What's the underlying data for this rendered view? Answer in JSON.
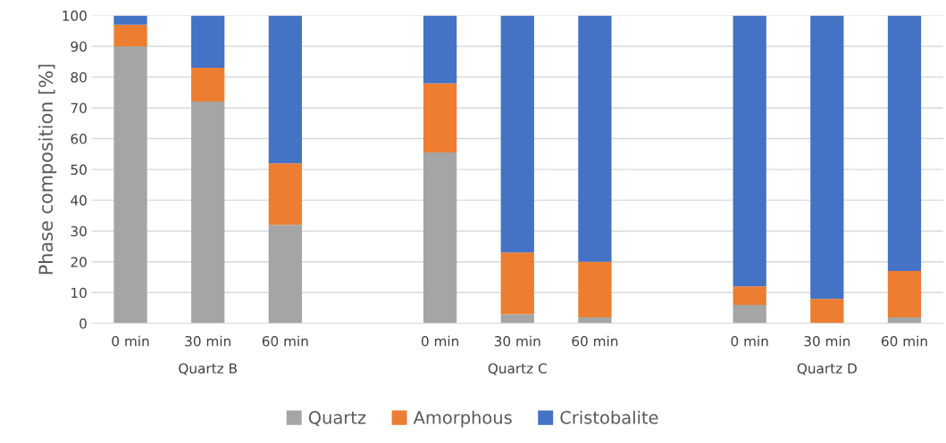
{
  "chart_data": {
    "type": "bar",
    "stacked": true,
    "ylabel": "Phase composition [%]",
    "categories": [
      "0 min",
      "30 min",
      "60 min",
      null,
      "0 min",
      "30 min",
      "60 min",
      null,
      "0 min",
      "30 min",
      "60 min"
    ],
    "series": [
      {
        "name": "Quartz",
        "color": "#a5a5a5",
        "values": [
          90,
          72,
          32,
          null,
          55.5,
          3,
          2,
          null,
          6,
          0,
          2
        ]
      },
      {
        "name": "Amorphous",
        "color": "#ed7d31",
        "values": [
          7,
          11,
          20,
          null,
          22.5,
          20,
          18,
          null,
          6,
          8,
          15
        ]
      },
      {
        "name": "Cristobalite",
        "color": "#4472c4",
        "values": [
          3,
          17,
          48,
          null,
          22,
          77,
          80,
          null,
          88,
          92,
          83
        ]
      }
    ],
    "annotations": [
      "Quartz B",
      "Quartz C",
      "Quartz D"
    ],
    "ylim": [
      0,
      100
    ],
    "yticks": [
      0,
      10,
      20,
      30,
      40,
      50,
      60,
      70,
      80,
      90,
      100
    ],
    "grid": "y",
    "legend": "bottom"
  }
}
